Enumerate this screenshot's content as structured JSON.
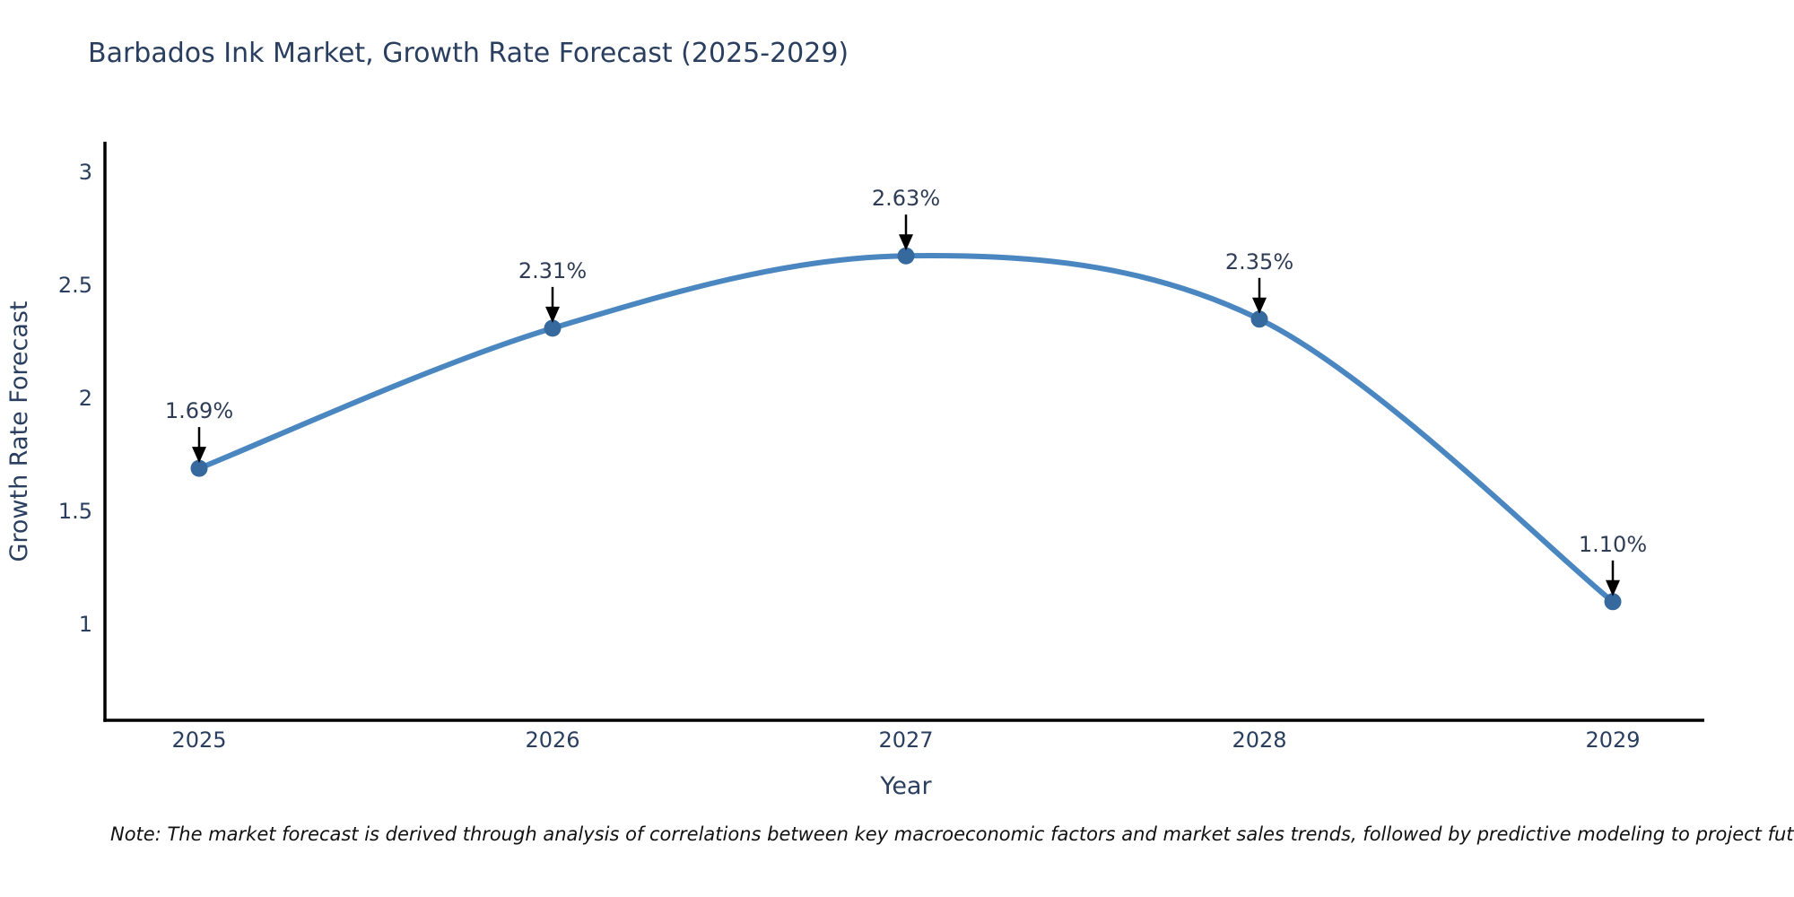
{
  "title": "Barbados Ink Market, Growth Rate Forecast (2025-2029)",
  "note": "Note: The market forecast is derived through analysis of correlations between key macroeconomic factors and market sales trends, followed by predictive modeling to project future sales",
  "chart_data": {
    "type": "line",
    "title": "Barbados Ink Market, Growth Rate Forecast (2025-2029)",
    "xlabel": "Year",
    "ylabel": "Growth Rate Forecast",
    "x": [
      2025,
      2026,
      2027,
      2028,
      2029
    ],
    "series": [
      {
        "name": "Growth Rate Forecast",
        "values": [
          1.69,
          2.31,
          2.63,
          2.35,
          1.1
        ]
      }
    ],
    "point_labels": [
      "1.69%",
      "2.31%",
      "2.63%",
      "2.35%",
      "1.10%"
    ],
    "yticks": [
      "1",
      "1.5",
      "2",
      "2.5",
      "3"
    ],
    "ytick_values": [
      1,
      1.5,
      2,
      2.5,
      3
    ],
    "ylim": [
      0.58,
      3.13
    ],
    "grid": false,
    "legend": "none",
    "line_shape": "spline",
    "annotation_style": "black-down-arrow",
    "colors": {
      "line": "#4a86c0",
      "marker": "#36699e",
      "axis_line": "#000000",
      "text": "#2a3f5f",
      "annotation_text": "#2e3d55",
      "annotation_arrow": "#000000",
      "note_text": "#111111",
      "background": "#ffffff"
    }
  }
}
